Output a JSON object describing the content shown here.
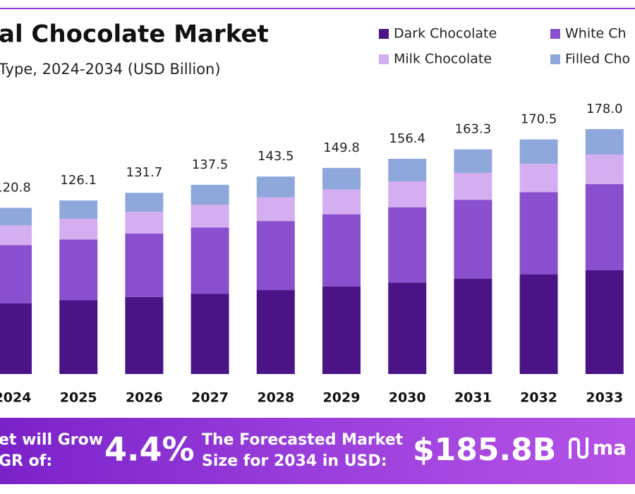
{
  "chart_data": {
    "type": "stacked-bar",
    "title": "al Chocolate Market",
    "subtitle": "Type, 2024-2034 (USD Billion)",
    "categories": [
      "2024",
      "2025",
      "2026",
      "2027",
      "2028",
      "2029",
      "2030",
      "2031",
      "2032",
      "2033"
    ],
    "series": [
      {
        "name": "Dark Chocolate",
        "color": "#4a1486",
        "values": [
          51.3,
          53.6,
          56.0,
          58.4,
          61.0,
          63.7,
          66.5,
          69.4,
          72.5,
          75.4
        ]
      },
      {
        "name": "White Ch",
        "color": "#8a4fcf",
        "values": [
          42.3,
          44.1,
          46.1,
          48.1,
          50.2,
          52.4,
          54.7,
          57.2,
          59.7,
          62.6
        ]
      },
      {
        "name": "Milk Chocolate",
        "color": "#d4aef0",
        "values": [
          14.5,
          15.1,
          15.8,
          16.5,
          17.2,
          18.0,
          18.8,
          19.6,
          20.5,
          21.5
        ]
      },
      {
        "name": "Filled Cho",
        "color": "#8fa8dc",
        "values": [
          12.7,
          13.3,
          13.8,
          14.5,
          15.1,
          15.7,
          16.4,
          17.1,
          17.8,
          18.5
        ]
      }
    ],
    "totals": [
      120.8,
      126.1,
      131.7,
      137.5,
      143.5,
      149.8,
      156.4,
      163.3,
      170.5,
      178
    ],
    "total_labels": [
      "120.8",
      "126.1",
      "131.7",
      "137.5",
      "143.5",
      "149.8",
      "156.4",
      "163.3",
      "170.5",
      "178.0"
    ],
    "ylim": [
      0,
      200
    ]
  },
  "banner": {
    "left_line1": "et will Grow",
    "left_line2": "GR of:",
    "cagr": "4.4%",
    "middle_line1": "The Forecasted Market",
    "middle_line2": "Size for 2034 in USD:",
    "market_size": "$185.8B",
    "logo": "ma"
  }
}
